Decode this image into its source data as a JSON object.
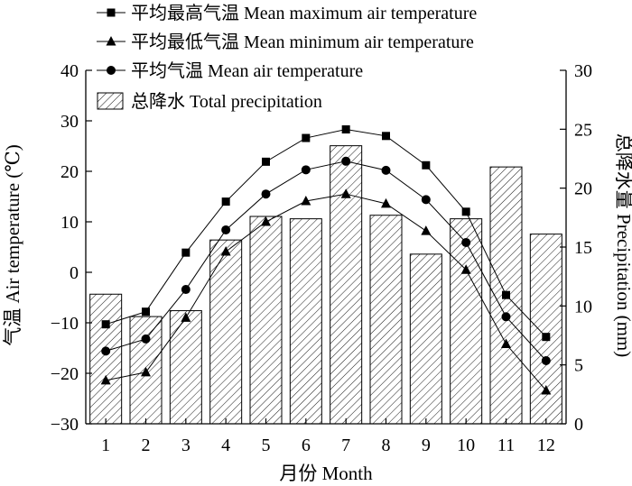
{
  "chart_data": {
    "type": "bar+line",
    "categories": [
      "1",
      "2",
      "3",
      "4",
      "5",
      "6",
      "7",
      "8",
      "9",
      "10",
      "11",
      "12"
    ],
    "xlabel": "月份 Month",
    "ylabel_left": "气温 Air temperature (℃)",
    "ylabel_right": "总降水量 Precipitation (mm)",
    "ylim_left": [
      -30,
      40
    ],
    "yticks_left": [
      "40",
      "30",
      "20",
      "10",
      "0",
      "−10",
      "−20",
      "−30"
    ],
    "ylim_right": [
      0,
      30
    ],
    "yticks_right": [
      "30",
      "25",
      "20",
      "15",
      "10",
      "5",
      "0"
    ],
    "legend_position": "top-left",
    "grid": false,
    "series": [
      {
        "name": "平均最高气温 Mean maximum air temperature",
        "axis": "left",
        "kind": "line",
        "marker": "square",
        "values": [
          -10.3,
          -7.8,
          3.9,
          14.0,
          21.9,
          26.6,
          28.3,
          27.0,
          21.2,
          12.0,
          -4.5,
          -12.8
        ]
      },
      {
        "name": "平均最低气温 Mean minimum air temperature",
        "axis": "left",
        "kind": "line",
        "marker": "triangle",
        "values": [
          -21.4,
          -19.8,
          -9.0,
          4.1,
          10.0,
          14.1,
          15.5,
          13.6,
          8.2,
          0.5,
          -14.2,
          -23.4
        ]
      },
      {
        "name": "平均气温 Mean air temperature",
        "axis": "left",
        "kind": "line",
        "marker": "circle",
        "values": [
          -15.6,
          -13.2,
          -3.4,
          8.4,
          15.5,
          20.3,
          22.0,
          20.2,
          14.4,
          5.9,
          -8.8,
          -17.5
        ]
      },
      {
        "name": "总降水 Total precipitation",
        "axis": "right",
        "kind": "bar",
        "values": [
          11.0,
          9.1,
          9.6,
          15.6,
          17.6,
          17.4,
          23.6,
          17.7,
          14.4,
          17.4,
          21.8,
          16.1
        ]
      }
    ]
  }
}
